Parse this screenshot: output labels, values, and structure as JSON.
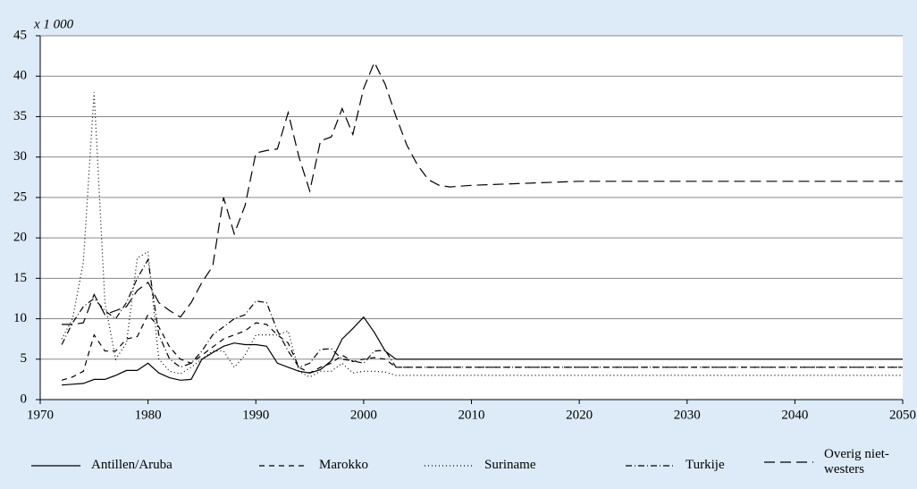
{
  "chart_data": {
    "type": "line",
    "y_label": "x 1 000",
    "x": [
      1972,
      1973,
      1974,
      1975,
      1976,
      1977,
      1978,
      1979,
      1980,
      1981,
      1982,
      1983,
      1984,
      1985,
      1986,
      1987,
      1988,
      1989,
      1990,
      1991,
      1992,
      1993,
      1994,
      1995,
      1996,
      1997,
      1998,
      1999,
      2000,
      2001,
      2002,
      2003,
      2004,
      2005,
      2006,
      2007,
      2008,
      2010,
      2020,
      2030,
      2040,
      2050
    ],
    "series": [
      {
        "name": "Antillen/Aruba",
        "color": "#000000",
        "dash": "none",
        "values": [
          1.8,
          1.9,
          2,
          2.5,
          2.5,
          3,
          3.6,
          3.6,
          4.5,
          3.3,
          2.7,
          2.4,
          2.5,
          5,
          5.8,
          6.6,
          7,
          6.8,
          6.8,
          6.6,
          4.5,
          4,
          3.5,
          3.3,
          3.7,
          4.8,
          7.5,
          8.8,
          10.2,
          8.3,
          6,
          5,
          5,
          5,
          5,
          5,
          5,
          5,
          5,
          5,
          5,
          5
        ]
      },
      {
        "name": "Marokko",
        "color": "#000000",
        "dash": "6 5",
        "values": [
          2.4,
          2.8,
          3.5,
          8,
          6,
          6,
          7.5,
          7.8,
          10.5,
          9,
          6.5,
          5,
          4.5,
          5.5,
          6.5,
          7.5,
          8,
          8.5,
          9.5,
          9.3,
          8,
          7,
          4,
          3.3,
          4,
          4.5,
          5.5,
          4.7,
          5,
          5.2,
          5,
          4,
          4,
          4,
          4,
          4,
          4,
          4,
          4,
          4,
          4,
          4
        ]
      },
      {
        "name": "Suriname",
        "color": "#000000",
        "dash": "1 3",
        "values": [
          7.5,
          10,
          17,
          38,
          12,
          5,
          7,
          17.5,
          18.3,
          5,
          3.5,
          3.2,
          4,
          5,
          6,
          6,
          4,
          5.5,
          8,
          8,
          8,
          8.5,
          3.5,
          2.8,
          3.5,
          3.5,
          4.5,
          3.3,
          3.5,
          3.5,
          3.4,
          3,
          3,
          3,
          3,
          3,
          3,
          3,
          3,
          3,
          3,
          3
        ]
      },
      {
        "name": "Turkije",
        "color": "#000000",
        "dash": "7 3 1 3",
        "values": [
          6.8,
          9.5,
          11.5,
          12.5,
          11,
          10,
          12,
          15,
          17.3,
          8,
          5,
          4,
          4.5,
          6,
          8,
          9,
          10,
          10.5,
          12.2,
          12,
          8.5,
          6,
          4,
          4.5,
          6.2,
          6.3,
          5,
          4.8,
          4.5,
          6,
          6.1,
          4,
          4,
          4,
          4,
          4,
          4,
          4,
          4,
          4,
          4,
          4
        ]
      },
      {
        "name": "Overig niet-westers",
        "color": "#000000",
        "dash": "12 6",
        "values": [
          9.3,
          9.3,
          9.5,
          13,
          10.5,
          11,
          11.5,
          13.5,
          14.5,
          12,
          11,
          10.2,
          12,
          14.5,
          16.5,
          25,
          20.5,
          24,
          30.5,
          30.8,
          31,
          35.5,
          30,
          25.8,
          32,
          32.5,
          36,
          32.8,
          38.5,
          41.7,
          39,
          35,
          31.5,
          29,
          27.2,
          26.5,
          26.3,
          26.5,
          27,
          27,
          27,
          27
        ]
      }
    ],
    "xlim": [
      1970,
      2050
    ],
    "xticks": [
      1970,
      1980,
      1990,
      2000,
      2010,
      2020,
      2030,
      2040,
      2050
    ],
    "ylim": [
      0,
      45
    ],
    "yticks": [
      0,
      5,
      10,
      15,
      20,
      25,
      30,
      35,
      40,
      45
    ],
    "grid": true
  }
}
